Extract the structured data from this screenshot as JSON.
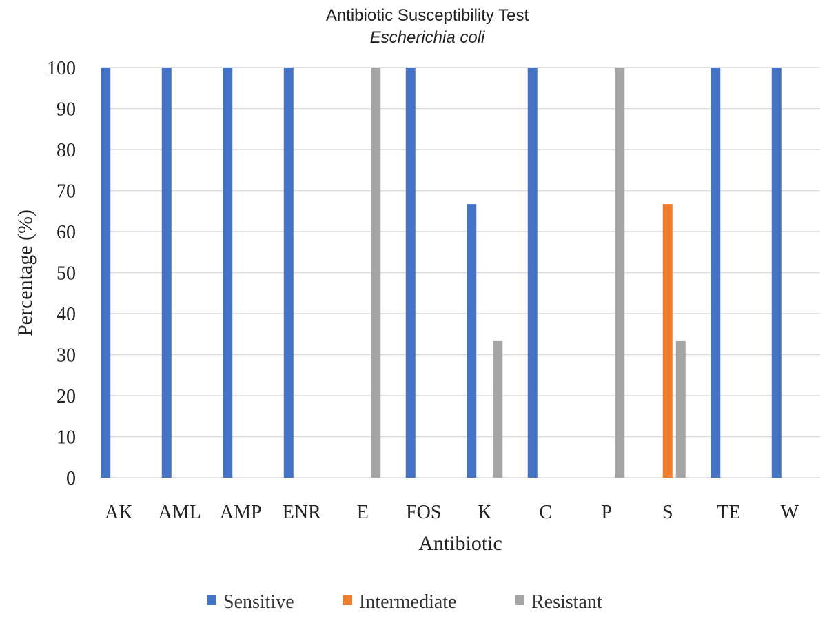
{
  "chart_data": {
    "type": "bar",
    "title": "Antibiotic Susceptibility Test",
    "subtitle": "Escherichia coli",
    "xlabel": "Antibiotic",
    "ylabel": "Percentage (%)",
    "ylim": [
      0,
      100
    ],
    "yticks": [
      "0",
      "10",
      "20",
      "30",
      "40",
      "50",
      "60",
      "70",
      "80",
      "90",
      "100"
    ],
    "grid": true,
    "legend_position": "bottom",
    "categories": [
      "AK",
      "AML",
      "AMP",
      "ENR",
      "E",
      "FOS",
      "K",
      "C",
      "P",
      "S",
      "TE",
      "W"
    ],
    "series": [
      {
        "name": "Sensitive",
        "color": "#4472c4",
        "values": [
          100,
          100,
          100,
          100,
          0,
          100,
          66.7,
          100,
          0,
          0,
          100,
          100
        ]
      },
      {
        "name": "Intermediate",
        "color": "#ed7d31",
        "values": [
          0,
          0,
          0,
          0,
          0,
          0,
          0,
          0,
          0,
          66.7,
          0,
          0
        ]
      },
      {
        "name": "Resistant",
        "color": "#a5a5a5",
        "values": [
          0,
          0,
          0,
          0,
          100,
          0,
          33.3,
          0,
          100,
          33.3,
          0,
          0
        ]
      }
    ]
  }
}
